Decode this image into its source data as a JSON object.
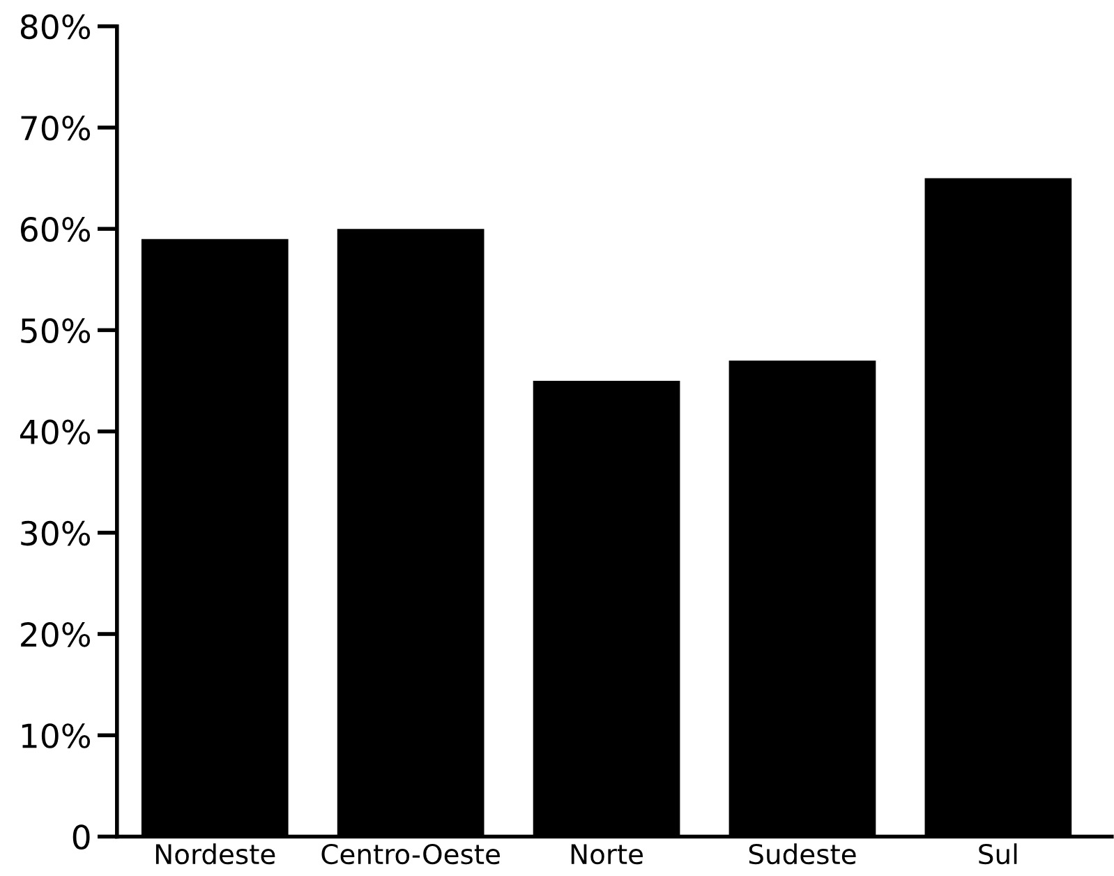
{
  "chart_data": {
    "type": "bar",
    "categories": [
      "Nordeste",
      "Centro-Oeste",
      "Norte",
      "Sudeste",
      "Sul"
    ],
    "values": [
      59,
      60,
      45,
      47,
      65
    ],
    "color": "#000000",
    "ylim": [
      0,
      80
    ],
    "yticks": [
      0,
      {
        "value": 10,
        "label": "10%"
      },
      {
        "value": 20,
        "label": "20%"
      },
      {
        "value": 30,
        "label": "30%"
      },
      {
        "value": 40,
        "label": "40%"
      },
      {
        "value": 50,
        "label": "50%"
      },
      {
        "value": 60,
        "label": "60%"
      },
      {
        "value": 70,
        "label": "70%"
      },
      {
        "value": 80,
        "label": "80%"
      }
    ],
    "grid": false
  }
}
